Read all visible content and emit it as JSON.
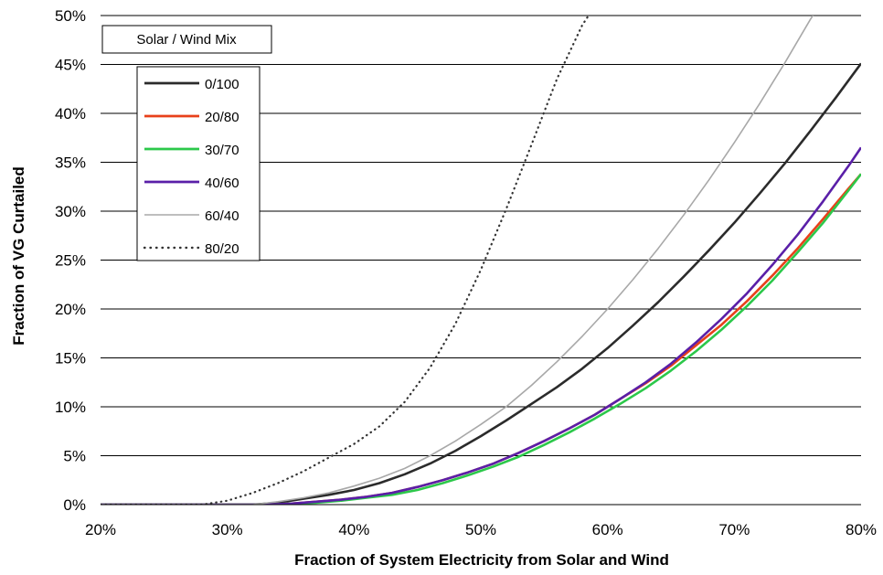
{
  "chart_data": {
    "type": "line",
    "xlabel": "Fraction of System Electricity from Solar and Wind",
    "ylabel": "Fraction of VG Curtailed",
    "xlim": [
      20,
      80
    ],
    "ylim": [
      0,
      50
    ],
    "x_ticks": [
      "20%",
      "30%",
      "40%",
      "50%",
      "60%",
      "70%",
      "80%"
    ],
    "y_ticks": [
      "0%",
      "5%",
      "10%",
      "15%",
      "20%",
      "25%",
      "30%",
      "35%",
      "40%",
      "45%",
      "50%"
    ],
    "grid": "horizontal",
    "legend": {
      "title": "Solar / Wind Mix",
      "placement": "top-left"
    },
    "series": [
      {
        "name": "0/100",
        "color": "#2b2b2b",
        "style": "solid",
        "points": [
          [
            20,
            0
          ],
          [
            30,
            0
          ],
          [
            32,
            0
          ],
          [
            34,
            0.2
          ],
          [
            36,
            0.6
          ],
          [
            38,
            1.0
          ],
          [
            40,
            1.5
          ],
          [
            42,
            2.2
          ],
          [
            44,
            3.1
          ],
          [
            46,
            4.2
          ],
          [
            48,
            5.5
          ],
          [
            50,
            7.0
          ],
          [
            52,
            8.6
          ],
          [
            54,
            10.3
          ],
          [
            56,
            12.0
          ],
          [
            58,
            13.9
          ],
          [
            60,
            16.0
          ],
          [
            62,
            18.3
          ],
          [
            64,
            20.7
          ],
          [
            66,
            23.3
          ],
          [
            68,
            26.0
          ],
          [
            70,
            28.8
          ],
          [
            72,
            31.8
          ],
          [
            74,
            34.9
          ],
          [
            76,
            38.2
          ],
          [
            78,
            41.6
          ],
          [
            80,
            45.1
          ]
        ]
      },
      {
        "name": "20/80",
        "color": "#e8401a",
        "style": "solid",
        "points": [
          [
            20,
            0
          ],
          [
            30,
            0
          ],
          [
            33,
            0
          ],
          [
            35,
            0.1
          ],
          [
            37,
            0.3
          ],
          [
            39,
            0.5
          ],
          [
            41,
            0.8
          ],
          [
            43,
            1.2
          ],
          [
            45,
            1.8
          ],
          [
            47,
            2.5
          ],
          [
            49,
            3.3
          ],
          [
            51,
            4.2
          ],
          [
            53,
            5.3
          ],
          [
            55,
            6.5
          ],
          [
            57,
            7.8
          ],
          [
            59,
            9.2
          ],
          [
            61,
            10.8
          ],
          [
            63,
            12.4
          ],
          [
            65,
            14.2
          ],
          [
            67,
            16.3
          ],
          [
            69,
            18.4
          ],
          [
            71,
            20.8
          ],
          [
            73,
            23.4
          ],
          [
            75,
            26.2
          ],
          [
            77,
            29.2
          ],
          [
            79,
            32.3
          ],
          [
            80,
            33.8
          ]
        ]
      },
      {
        "name": "30/70",
        "color": "#2cc84a",
        "style": "solid",
        "points": [
          [
            20,
            0
          ],
          [
            30,
            0
          ],
          [
            33,
            0
          ],
          [
            35,
            0.1
          ],
          [
            37,
            0.2
          ],
          [
            39,
            0.4
          ],
          [
            41,
            0.7
          ],
          [
            43,
            1.0
          ],
          [
            45,
            1.5
          ],
          [
            47,
            2.2
          ],
          [
            49,
            3.0
          ],
          [
            51,
            3.9
          ],
          [
            53,
            4.9
          ],
          [
            55,
            6.1
          ],
          [
            57,
            7.4
          ],
          [
            59,
            8.8
          ],
          [
            61,
            10.3
          ],
          [
            63,
            11.9
          ],
          [
            65,
            13.7
          ],
          [
            67,
            15.7
          ],
          [
            69,
            17.9
          ],
          [
            71,
            20.3
          ],
          [
            73,
            22.9
          ],
          [
            75,
            25.8
          ],
          [
            77,
            28.8
          ],
          [
            79,
            32.1
          ],
          [
            80,
            33.8
          ]
        ]
      },
      {
        "name": "40/60",
        "color": "#5a1fa8",
        "style": "solid",
        "points": [
          [
            20,
            0
          ],
          [
            30,
            0
          ],
          [
            33,
            0
          ],
          [
            35,
            0.1
          ],
          [
            37,
            0.3
          ],
          [
            39,
            0.5
          ],
          [
            41,
            0.8
          ],
          [
            43,
            1.2
          ],
          [
            45,
            1.8
          ],
          [
            47,
            2.5
          ],
          [
            49,
            3.3
          ],
          [
            51,
            4.2
          ],
          [
            53,
            5.3
          ],
          [
            55,
            6.5
          ],
          [
            57,
            7.8
          ],
          [
            59,
            9.2
          ],
          [
            61,
            10.8
          ],
          [
            63,
            12.5
          ],
          [
            65,
            14.4
          ],
          [
            67,
            16.6
          ],
          [
            69,
            19.0
          ],
          [
            71,
            21.6
          ],
          [
            73,
            24.5
          ],
          [
            75,
            27.6
          ],
          [
            77,
            31.0
          ],
          [
            79,
            34.6
          ],
          [
            80,
            36.5
          ]
        ]
      },
      {
        "name": "60/40",
        "color": "#a8a8a8",
        "style": "solid",
        "points": [
          [
            20,
            0
          ],
          [
            30,
            0
          ],
          [
            32,
            0
          ],
          [
            34,
            0.3
          ],
          [
            36,
            0.7
          ],
          [
            38,
            1.2
          ],
          [
            40,
            1.9
          ],
          [
            42,
            2.7
          ],
          [
            44,
            3.7
          ],
          [
            46,
            5.0
          ],
          [
            48,
            6.5
          ],
          [
            50,
            8.2
          ],
          [
            52,
            10.0
          ],
          [
            54,
            12.2
          ],
          [
            56,
            14.6
          ],
          [
            58,
            17.2
          ],
          [
            60,
            20.0
          ],
          [
            62,
            23.0
          ],
          [
            64,
            26.2
          ],
          [
            66,
            29.6
          ],
          [
            68,
            33.2
          ],
          [
            70,
            37.0
          ],
          [
            72,
            41.0
          ],
          [
            74,
            45.2
          ],
          [
            76,
            49.6
          ],
          [
            76.5,
            50.6
          ]
        ]
      },
      {
        "name": "80/20",
        "color": "#333333",
        "style": "dotted",
        "points": [
          [
            20,
            0
          ],
          [
            28,
            0
          ],
          [
            30,
            0.4
          ],
          [
            32,
            1.2
          ],
          [
            34,
            2.2
          ],
          [
            36,
            3.4
          ],
          [
            38,
            4.8
          ],
          [
            40,
            6.2
          ],
          [
            42,
            8.0
          ],
          [
            44,
            10.5
          ],
          [
            46,
            14.0
          ],
          [
            48,
            18.5
          ],
          [
            50,
            24.0
          ],
          [
            52,
            30.2
          ],
          [
            54,
            36.8
          ],
          [
            56,
            43.5
          ],
          [
            58,
            49.0
          ],
          [
            59,
            51.0
          ]
        ]
      }
    ]
  }
}
